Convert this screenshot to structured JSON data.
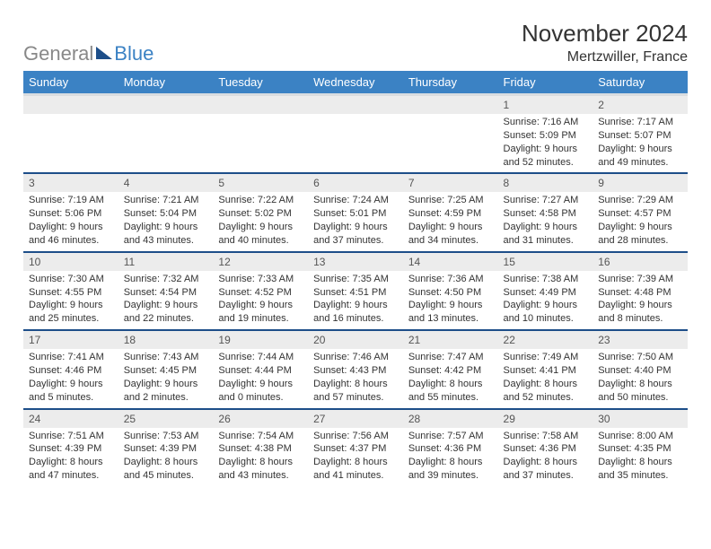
{
  "logo": {
    "gray": "General",
    "blue": "Blue"
  },
  "title": "November 2024",
  "location": "Mertzwiller, France",
  "colors": {
    "header_bg": "#3b82c4",
    "header_text": "#ffffff",
    "row_divider": "#1d4e89",
    "daynum_bg": "#ececec",
    "logo_gray": "#888888",
    "logo_blue": "#3b82c4",
    "logo_triangle": "#1d4e89"
  },
  "typography": {
    "title_fontsize": 26,
    "location_fontsize": 16,
    "dayhead_fontsize": 13,
    "daynum_fontsize": 12,
    "body_fontsize": 11
  },
  "day_headers": [
    "Sunday",
    "Monday",
    "Tuesday",
    "Wednesday",
    "Thursday",
    "Friday",
    "Saturday"
  ],
  "weeks": [
    [
      null,
      null,
      null,
      null,
      null,
      {
        "n": "1",
        "sunrise": "7:16 AM",
        "sunset": "5:09 PM",
        "daylight": "9 hours and 52 minutes."
      },
      {
        "n": "2",
        "sunrise": "7:17 AM",
        "sunset": "5:07 PM",
        "daylight": "9 hours and 49 minutes."
      }
    ],
    [
      {
        "n": "3",
        "sunrise": "7:19 AM",
        "sunset": "5:06 PM",
        "daylight": "9 hours and 46 minutes."
      },
      {
        "n": "4",
        "sunrise": "7:21 AM",
        "sunset": "5:04 PM",
        "daylight": "9 hours and 43 minutes."
      },
      {
        "n": "5",
        "sunrise": "7:22 AM",
        "sunset": "5:02 PM",
        "daylight": "9 hours and 40 minutes."
      },
      {
        "n": "6",
        "sunrise": "7:24 AM",
        "sunset": "5:01 PM",
        "daylight": "9 hours and 37 minutes."
      },
      {
        "n": "7",
        "sunrise": "7:25 AM",
        "sunset": "4:59 PM",
        "daylight": "9 hours and 34 minutes."
      },
      {
        "n": "8",
        "sunrise": "7:27 AM",
        "sunset": "4:58 PM",
        "daylight": "9 hours and 31 minutes."
      },
      {
        "n": "9",
        "sunrise": "7:29 AM",
        "sunset": "4:57 PM",
        "daylight": "9 hours and 28 minutes."
      }
    ],
    [
      {
        "n": "10",
        "sunrise": "7:30 AM",
        "sunset": "4:55 PM",
        "daylight": "9 hours and 25 minutes."
      },
      {
        "n": "11",
        "sunrise": "7:32 AM",
        "sunset": "4:54 PM",
        "daylight": "9 hours and 22 minutes."
      },
      {
        "n": "12",
        "sunrise": "7:33 AM",
        "sunset": "4:52 PM",
        "daylight": "9 hours and 19 minutes."
      },
      {
        "n": "13",
        "sunrise": "7:35 AM",
        "sunset": "4:51 PM",
        "daylight": "9 hours and 16 minutes."
      },
      {
        "n": "14",
        "sunrise": "7:36 AM",
        "sunset": "4:50 PM",
        "daylight": "9 hours and 13 minutes."
      },
      {
        "n": "15",
        "sunrise": "7:38 AM",
        "sunset": "4:49 PM",
        "daylight": "9 hours and 10 minutes."
      },
      {
        "n": "16",
        "sunrise": "7:39 AM",
        "sunset": "4:48 PM",
        "daylight": "9 hours and 8 minutes."
      }
    ],
    [
      {
        "n": "17",
        "sunrise": "7:41 AM",
        "sunset": "4:46 PM",
        "daylight": "9 hours and 5 minutes."
      },
      {
        "n": "18",
        "sunrise": "7:43 AM",
        "sunset": "4:45 PM",
        "daylight": "9 hours and 2 minutes."
      },
      {
        "n": "19",
        "sunrise": "7:44 AM",
        "sunset": "4:44 PM",
        "daylight": "9 hours and 0 minutes."
      },
      {
        "n": "20",
        "sunrise": "7:46 AM",
        "sunset": "4:43 PM",
        "daylight": "8 hours and 57 minutes."
      },
      {
        "n": "21",
        "sunrise": "7:47 AM",
        "sunset": "4:42 PM",
        "daylight": "8 hours and 55 minutes."
      },
      {
        "n": "22",
        "sunrise": "7:49 AM",
        "sunset": "4:41 PM",
        "daylight": "8 hours and 52 minutes."
      },
      {
        "n": "23",
        "sunrise": "7:50 AM",
        "sunset": "4:40 PM",
        "daylight": "8 hours and 50 minutes."
      }
    ],
    [
      {
        "n": "24",
        "sunrise": "7:51 AM",
        "sunset": "4:39 PM",
        "daylight": "8 hours and 47 minutes."
      },
      {
        "n": "25",
        "sunrise": "7:53 AM",
        "sunset": "4:39 PM",
        "daylight": "8 hours and 45 minutes."
      },
      {
        "n": "26",
        "sunrise": "7:54 AM",
        "sunset": "4:38 PM",
        "daylight": "8 hours and 43 minutes."
      },
      {
        "n": "27",
        "sunrise": "7:56 AM",
        "sunset": "4:37 PM",
        "daylight": "8 hours and 41 minutes."
      },
      {
        "n": "28",
        "sunrise": "7:57 AM",
        "sunset": "4:36 PM",
        "daylight": "8 hours and 39 minutes."
      },
      {
        "n": "29",
        "sunrise": "7:58 AM",
        "sunset": "4:36 PM",
        "daylight": "8 hours and 37 minutes."
      },
      {
        "n": "30",
        "sunrise": "8:00 AM",
        "sunset": "4:35 PM",
        "daylight": "8 hours and 35 minutes."
      }
    ]
  ],
  "labels": {
    "sunrise": "Sunrise:",
    "sunset": "Sunset:",
    "daylight": "Daylight:"
  }
}
